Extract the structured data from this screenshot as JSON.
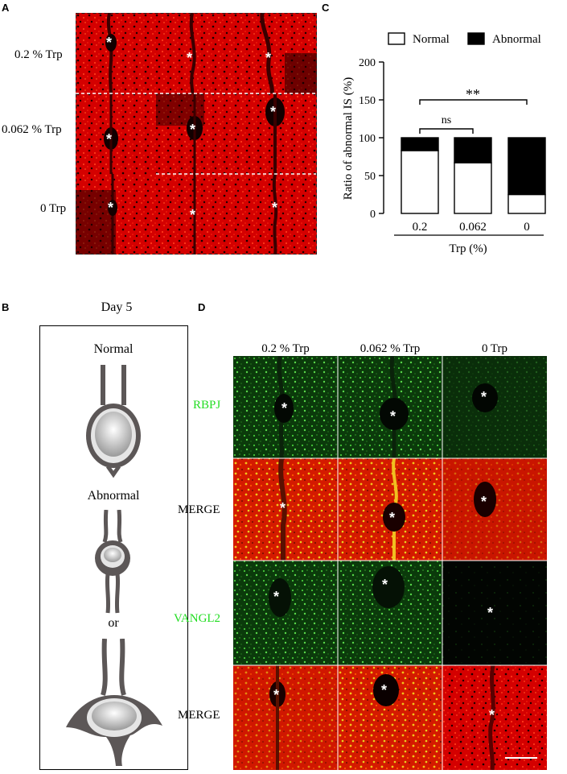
{
  "panels": {
    "a": {
      "label": "A",
      "rows": [
        "0.2 % Trp",
        "0.062 % Trp",
        "0 Trp"
      ],
      "marker": "*"
    },
    "b": {
      "label": "B",
      "title": "Day 5",
      "normal": "Normal",
      "abnormal": "Abnormal",
      "or": "or"
    },
    "c": {
      "label": "C",
      "legend": {
        "normal": "Normal",
        "abnormal": "Abnormal"
      },
      "sig_far": "**",
      "sig_near": "ns"
    },
    "d": {
      "label": "D",
      "columns": [
        "0.2 % Trp",
        "0.062 % Trp",
        "0 Trp"
      ],
      "rows": [
        "RBPJ",
        "MERGE",
        "VANGL2",
        "MERGE"
      ],
      "marker": "*"
    }
  },
  "chart_data": {
    "type": "bar",
    "stacked": true,
    "categories": [
      "0.2",
      "0.062",
      "0"
    ],
    "series": [
      {
        "name": "Normal",
        "values": [
          83,
          67,
          25
        ],
        "color": "#ffffff"
      },
      {
        "name": "Abnormal",
        "values": [
          17,
          33,
          75
        ],
        "color": "#000000"
      }
    ],
    "xlabel": "Trp (%)",
    "ylabel": "Ratio of abnormal IS (%)",
    "ylim": [
      0,
      200
    ],
    "yticks": [
      0,
      50,
      100,
      150,
      200
    ],
    "legend_position": "top",
    "grid": false
  }
}
